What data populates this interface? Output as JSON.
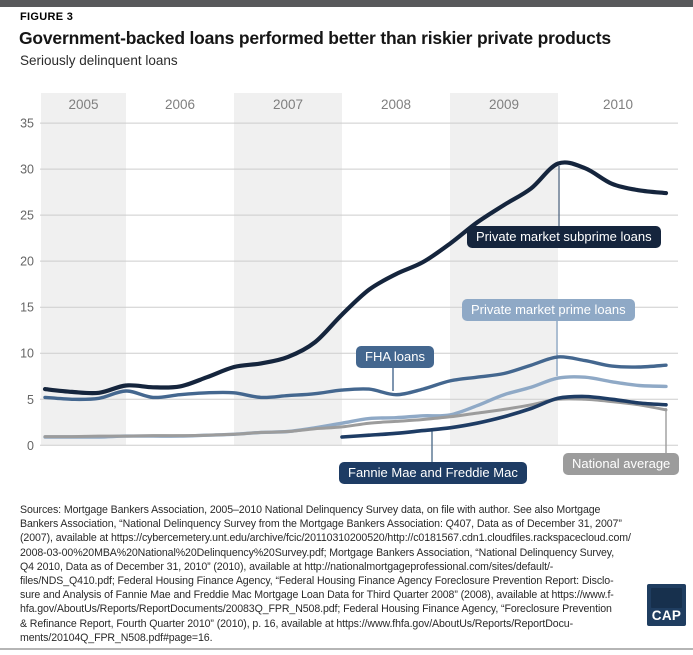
{
  "header": {
    "figure_label": "FIGURE 3",
    "title": "Government-backed loans performed better than riskier private products",
    "subtitle": "Seriously delinquent loans"
  },
  "chart_data": {
    "type": "line",
    "title": "Government-backed loans performed better than riskier private products",
    "subtitle": "Seriously delinquent loans",
    "xlabel": "",
    "ylabel": "",
    "ylim": [
      0,
      35
    ],
    "yticks": [
      0,
      5,
      10,
      15,
      20,
      25,
      30,
      35
    ],
    "grid": "horizontal",
    "year_labels": [
      "2005",
      "2006",
      "2007",
      "2008",
      "2009",
      "2010"
    ],
    "shaded_years": [
      "2005",
      "2007",
      "2009"
    ],
    "band_fill": "#f0f0f0",
    "gridline_color": "#cdcdcd",
    "x": [
      "2005 Q1",
      "2005 Q2",
      "2005 Q3",
      "2005 Q4",
      "2006 Q1",
      "2006 Q2",
      "2006 Q3",
      "2006 Q4",
      "2007 Q1",
      "2007 Q2",
      "2007 Q3",
      "2007 Q4",
      "2008 Q1",
      "2008 Q2",
      "2008 Q3",
      "2008 Q4",
      "2009 Q1",
      "2009 Q2",
      "2009 Q3",
      "2009 Q4",
      "2010 Q1",
      "2010 Q2",
      "2010 Q3",
      "2010 Q4"
    ],
    "series": [
      {
        "id": "prime",
        "name": "Private market prime loans",
        "color": "#8fa9c6",
        "stroke_width": 3.4,
        "values": [
          0.9,
          0.9,
          0.9,
          1.0,
          1.0,
          1.0,
          1.1,
          1.2,
          1.4,
          1.5,
          1.9,
          2.4,
          2.9,
          3.0,
          3.2,
          3.3,
          4.3,
          5.5,
          6.3,
          7.3,
          7.4,
          6.9,
          6.5,
          6.4
        ]
      },
      {
        "id": "national",
        "name": "National average",
        "color": "#9c9c9c",
        "stroke_width": 3,
        "values": [
          0.95,
          0.95,
          1.0,
          1.0,
          1.05,
          1.05,
          1.1,
          1.2,
          1.4,
          1.5,
          1.8,
          2.0,
          2.4,
          2.6,
          2.8,
          3.1,
          3.5,
          3.9,
          4.4,
          5.0,
          5.0,
          4.75,
          4.4,
          3.85
        ]
      },
      {
        "id": "fannie",
        "name": "Fannie Mae and Freddie Mac",
        "color": "#1e3c64",
        "stroke_width": 3.6,
        "values": [
          null,
          null,
          null,
          null,
          null,
          null,
          null,
          null,
          null,
          null,
          null,
          0.9,
          1.1,
          1.3,
          1.6,
          1.9,
          2.4,
          3.1,
          4.0,
          5.1,
          5.3,
          5.0,
          4.6,
          4.4
        ]
      },
      {
        "id": "fha",
        "name": "FHA loans",
        "color": "#44678f",
        "stroke_width": 3.4,
        "values": [
          5.2,
          5.0,
          5.1,
          5.9,
          5.2,
          5.5,
          5.7,
          5.7,
          5.2,
          5.4,
          5.6,
          6.0,
          6.1,
          5.5,
          6.1,
          7.0,
          7.4,
          7.8,
          8.7,
          9.6,
          9.2,
          8.6,
          8.5,
          8.7
        ]
      },
      {
        "id": "subprime",
        "name": "Private market subprime loans",
        "color": "#15253d",
        "stroke_width": 4.2,
        "values": [
          6.1,
          5.8,
          5.7,
          6.5,
          6.3,
          6.4,
          7.4,
          8.5,
          8.9,
          9.6,
          11.2,
          14.2,
          16.9,
          18.6,
          19.9,
          21.9,
          24.2,
          26.1,
          27.9,
          30.6,
          30.1,
          28.4,
          27.7,
          27.4
        ]
      }
    ],
    "legend_position": "inline-callouts"
  },
  "annotations": [
    {
      "id": "subprime",
      "label": "Private market subprime loans",
      "connector_color": "#5a6f87"
    },
    {
      "id": "prime",
      "label": "Private market prime loans",
      "connector_color": "#8fa9c6"
    },
    {
      "id": "fha",
      "label": "FHA loans",
      "connector_color": "#47688f"
    },
    {
      "id": "fannie",
      "label": "Fannie Mae and Freddie Mac",
      "connector_color": "#54718e"
    },
    {
      "id": "national",
      "label": "National average",
      "connector_color": "#9c9c9c"
    }
  ],
  "sources_lines": [
    "Sources: Mortgage Bankers Association, 2005–2010 National Delinquency Survey data, on file with author. See also Mortgage",
    "Bankers Association, “National Delinquency Survey from the Mortgage Bankers Association: Q407, Data as of December 31, 2007”",
    "(2007), available at https://cybercemetery.unt.edu/archive/fcic/20110310200520/http://c0181567.cdn1.cloudfiles.rackspacecloud.com/",
    "2008-03-00%20MBA%20National%20Delinquency%20Survey.pdf; Mortgage Bankers Association, “National Delinquency Survey,",
    "Q4 2010, Data as of December 31, 2010” (2010), available at http://nationalmortgageprofessional.com/sites/default/-",
    "files/NDS_Q410.pdf; Federal Housing Finance Agency, “Federal Housing Finance Agency Foreclosure Prevention Report: Disclo-",
    "sure and Analysis of Fannie Mae and Freddie Mac Mortgage Loan Data for Third Quarter 2008” (2008), available at https://www.f-",
    "hfa.gov/AboutUs/Reports/ReportDocuments/20083Q_FPR_N508.pdf; Federal Housing Finance Agency, “Foreclosure Prevention",
    "& Refinance Report, Fourth Quarter 2010” (2010), p. 16, available at https://www.fhfa.gov/AboutUs/Reports/ReportDocu-",
    "ments/20104Q_FPR_N508.pdf#page=16."
  ],
  "logo": {
    "text": "CAP"
  }
}
